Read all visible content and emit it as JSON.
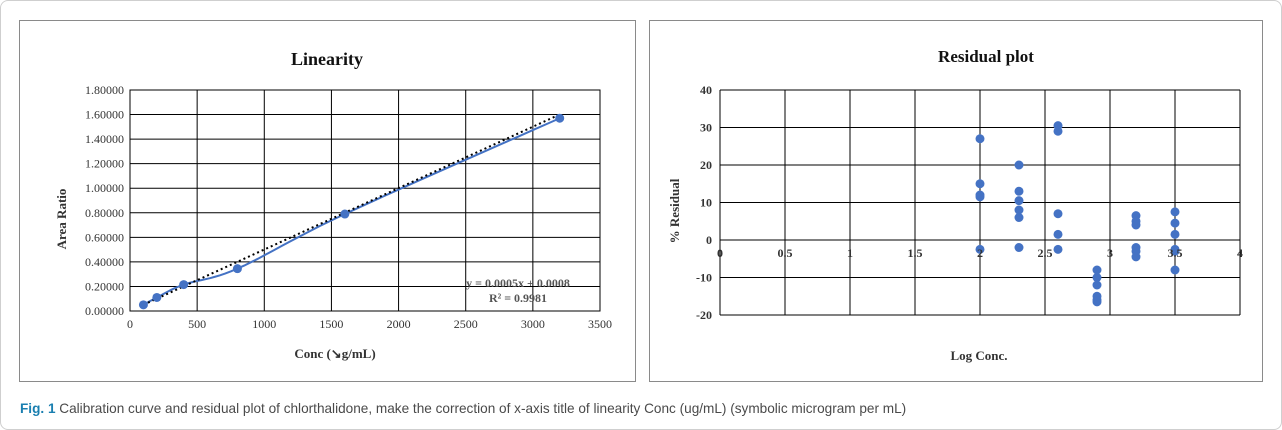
{
  "caption": {
    "label": "Fig. 1",
    "text": " Calibration curve and residual plot of chlorthalidone, make the correction of x-axis title of linearity Conc (ug/mL) (symbolic microgram per mL)"
  },
  "chart_data": [
    {
      "type": "scatter",
      "title": "Linearity",
      "xlabel": "Conc (↘g/mL)",
      "ylabel": "Area Ratio",
      "xlim": [
        0,
        3500
      ],
      "ylim": [
        0,
        1.8
      ],
      "xticks": [
        "0",
        "500",
        "1000",
        "1500",
        "2000",
        "2500",
        "3000",
        "3500"
      ],
      "yticks": [
        "0.00000",
        "0.20000",
        "0.40000",
        "0.60000",
        "0.80000",
        "1.00000",
        "1.20000",
        "1.40000",
        "1.60000",
        "1.80000"
      ],
      "grid": true,
      "points": {
        "x": [
          100,
          200,
          400,
          800,
          1600,
          3200
        ],
        "y": [
          0.05,
          0.11,
          0.215,
          0.345,
          0.79,
          1.57
        ]
      },
      "trendline": {
        "slope": 0.0005,
        "intercept": 0.0008,
        "style": "dotted"
      },
      "equation": "y = 0.0005x + 0.0008",
      "r_squared": "R² = 0.9981",
      "colors": {
        "marker": "#4472c4",
        "trend": "#000000"
      }
    },
    {
      "type": "scatter",
      "title": "Residual plot",
      "xlabel": "Log Conc.",
      "ylabel": "% Residual",
      "xlim": [
        0,
        4
      ],
      "ylim": [
        -20,
        40
      ],
      "xticks": [
        "0",
        "0.5",
        "1",
        "1.5",
        "2",
        "2.5",
        "3",
        "3.5",
        "4"
      ],
      "yticks": [
        "-20",
        "-10",
        "0",
        "10",
        "20",
        "30",
        "40"
      ],
      "grid": true,
      "points": {
        "x": [
          2,
          2,
          2,
          2,
          2,
          2.3,
          2.3,
          2.3,
          2.3,
          2.3,
          2.3,
          2.6,
          2.6,
          2.6,
          2.6,
          2.6,
          2.9,
          2.9,
          2.9,
          2.9,
          2.9,
          2.9,
          3.2,
          3.2,
          3.2,
          3.2,
          3.2,
          3.2,
          3.5,
          3.5,
          3.5,
          3.5,
          3.5,
          3.5
        ],
        "y": [
          27,
          15,
          12,
          11.5,
          -2.5,
          20,
          13,
          10.5,
          8,
          6,
          -2,
          30.5,
          29,
          7,
          1.5,
          -2.5,
          -8,
          -10,
          -12,
          -15,
          -16.5,
          -16,
          6.5,
          5,
          4,
          -2,
          -3,
          -4.5,
          7.5,
          4.5,
          1.5,
          -2.5,
          -3,
          -8
        ]
      },
      "colors": {
        "marker": "#4472c4"
      }
    }
  ]
}
